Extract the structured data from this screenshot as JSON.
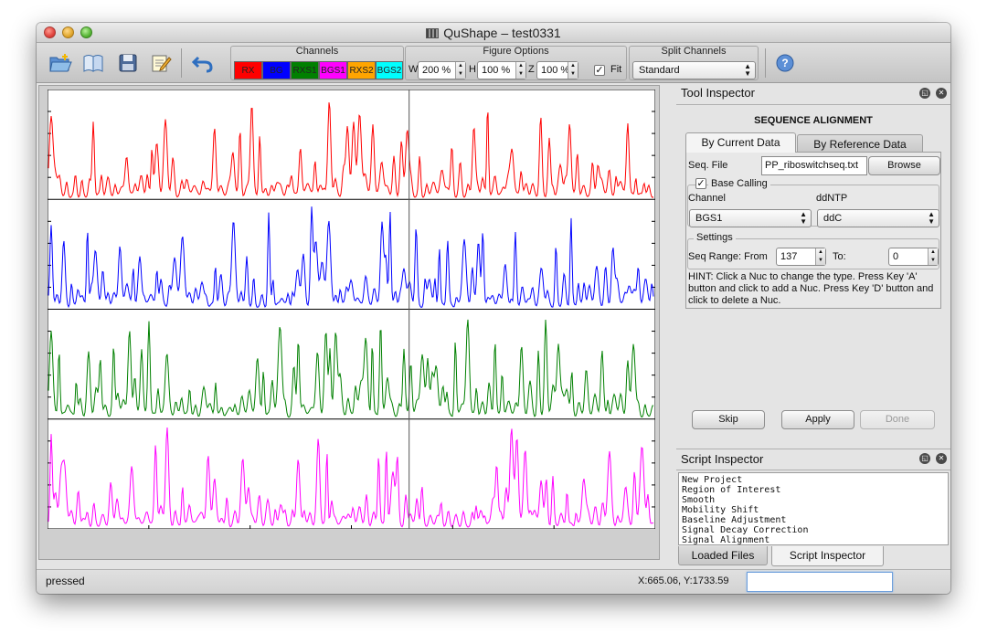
{
  "window": {
    "title": "QuShape – test0331"
  },
  "toolbar": {
    "icons": [
      "open-folder-icon",
      "book-icon",
      "save-disk-icon",
      "edit-notes-icon",
      "undo-arrow-icon",
      "help-icon"
    ],
    "channels": {
      "title": "Channels",
      "items": [
        {
          "label": "RX",
          "color": "#ff0000",
          "text_color": "#222222"
        },
        {
          "label": "BG",
          "color": "#0000ff",
          "text_color": "#222222"
        },
        {
          "label": "RXS1",
          "color": "#008000",
          "text_color": "#222222"
        },
        {
          "label": "BGS1",
          "color": "#ff00ff",
          "text_color": "#222222"
        },
        {
          "label": "RXS2",
          "color": "#ffa500",
          "text_color": "#222222"
        },
        {
          "label": "BGS2",
          "color": "#00ffff",
          "text_color": "#222222"
        }
      ]
    },
    "figure_options": {
      "title": "Figure Options",
      "w_label": "W",
      "w_value": "200 %",
      "h_label": "H",
      "h_value": "100 %",
      "z_label": "Z",
      "z_value": "100 %",
      "fit_label": "Fit",
      "fit_checked": true
    },
    "split_channels": {
      "title": "Split Channels",
      "value": "Standard"
    }
  },
  "plot": {
    "traces": [
      {
        "color": "#ff0000",
        "baseline": "low"
      },
      {
        "color": "#0000ff",
        "baseline": "low"
      },
      {
        "color": "#008000",
        "baseline": "low"
      },
      {
        "color": "#ff00ff",
        "baseline": "low"
      }
    ],
    "cursor_fraction": 0.595
  },
  "tool_inspector": {
    "title": "Tool Inspector",
    "section": "SEQUENCE ALIGNMENT",
    "tabs": [
      "By Current Data",
      "By Reference Data"
    ],
    "seq_file_label": "Seq. File",
    "seq_file_value": "PP_riboswitchseq.txt",
    "browse_label": "Browse",
    "base_calling_label": "Base Calling",
    "base_calling_checked": true,
    "channel_label": "Channel",
    "channel_value": "BGS1",
    "ddntp_label": "ddNTP",
    "ddntp_value": "ddC",
    "settings_label": "Settings",
    "seq_range_label": "Seq Range: From",
    "from_value": "137",
    "to_label": "To:",
    "to_value": "0",
    "hint": "HINT: Click a Nuc to change the type. Press Key 'A' button and click to add a Nuc. Press Key 'D' button and click to delete a Nuc.",
    "skip_label": "Skip",
    "apply_label": "Apply",
    "done_label": "Done"
  },
  "script_inspector": {
    "title": "Script Inspector",
    "lines": [
      "New Project",
      "Region of Interest",
      "Smooth",
      "Mobility Shift",
      "Baseline Adjustment",
      "Signal Decay Correction",
      "Signal Alignment"
    ],
    "bottom_tabs": [
      "Loaded Files",
      "Script Inspector"
    ]
  },
  "status": {
    "message": "pressed",
    "coords": "X:665.06, Y:1733.59"
  }
}
